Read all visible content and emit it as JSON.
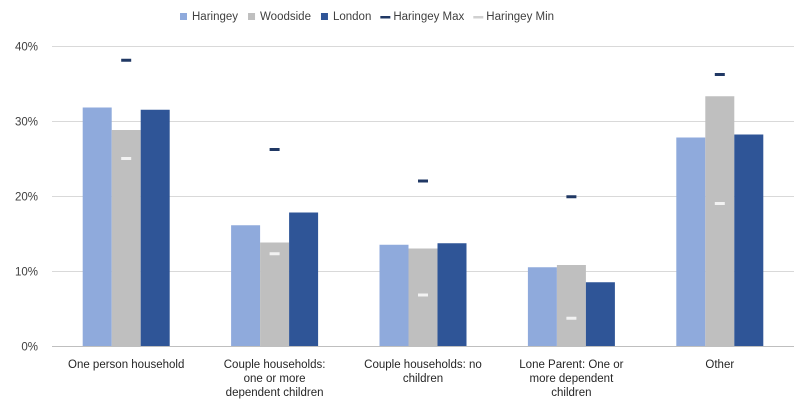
{
  "chart_data": {
    "type": "bar",
    "title": "",
    "xlabel": "",
    "ylabel": "",
    "ylim": [
      0,
      0.4
    ],
    "yticks": [
      {
        "value": 0,
        "label": "0%"
      },
      {
        "value": 0.1,
        "label": "10%"
      },
      {
        "value": 0.2,
        "label": "20%"
      },
      {
        "value": 0.3,
        "label": "30%"
      },
      {
        "value": 0.4,
        "label": "40%"
      }
    ],
    "grid": true,
    "legend_position": "top",
    "categories": [
      [
        "One person household"
      ],
      [
        "Couple households:",
        "one or more",
        "dependent children"
      ],
      [
        "Couple households: no",
        "children"
      ],
      [
        "Lone Parent: One or",
        "more dependent",
        "children"
      ],
      [
        "Other"
      ]
    ],
    "series": [
      {
        "name": "Haringey",
        "kind": "bar",
        "color": "#8FAADC",
        "values": [
          0.318,
          0.161,
          0.135,
          0.105,
          0.278
        ]
      },
      {
        "name": "Woodside",
        "kind": "bar",
        "color": "#BFBFBF",
        "values": [
          0.288,
          0.138,
          0.13,
          0.108,
          0.333
        ]
      },
      {
        "name": "London",
        "kind": "bar",
        "color": "#2F5597",
        "values": [
          0.315,
          0.178,
          0.137,
          0.085,
          0.282
        ]
      },
      {
        "name": "Haringey Max",
        "kind": "marker",
        "color": "#203864",
        "values": [
          0.381,
          0.262,
          0.22,
          0.199,
          0.362
        ]
      },
      {
        "name": "Haringey Min",
        "kind": "marker",
        "color": "#F2F2F2",
        "values": [
          0.25,
          0.123,
          0.068,
          0.037,
          0.19
        ]
      }
    ]
  }
}
